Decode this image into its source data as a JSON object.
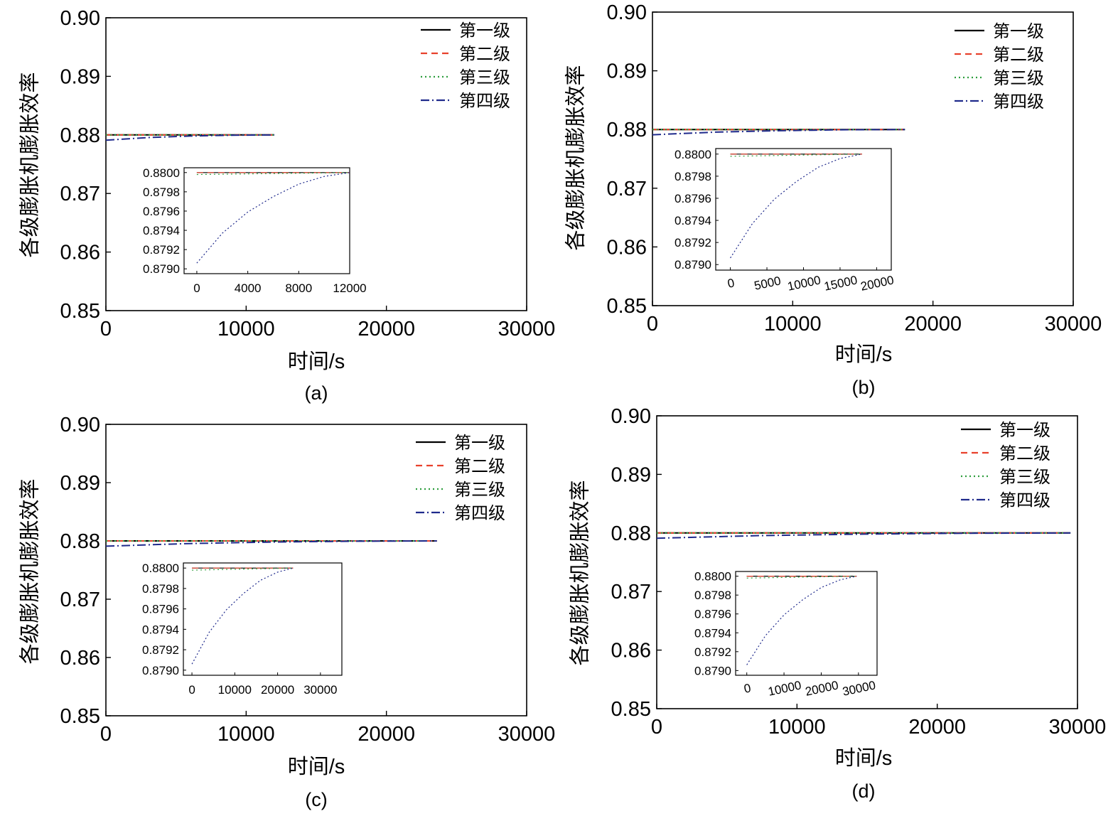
{
  "series_styles": [
    {
      "color": "#000000",
      "dash": ""
    },
    {
      "color": "#e8412c",
      "dash": "9,6"
    },
    {
      "color": "#2e9e3e",
      "dash": "2,4"
    },
    {
      "color": "#1f2a8c",
      "dash": "12,4,2,4"
    }
  ],
  "chart_data": [
    {
      "type": "line",
      "caption": "(a)",
      "xlabel": "时间/s",
      "ylabel": "各级膨胀机膨胀效率",
      "xlim": [
        0,
        30000
      ],
      "ylim": [
        0.85,
        0.9
      ],
      "xticks": [
        0,
        10000,
        20000,
        30000
      ],
      "yticks": [
        "0.85",
        "0.86",
        "0.87",
        "0.88",
        "0.89",
        "0.90"
      ],
      "legend": [
        "第一级",
        "第二级",
        "第三级",
        "第四级"
      ],
      "legend_position": "top-right",
      "series": [
        {
          "name": "第一级",
          "x": [
            0,
            12000
          ],
          "y": [
            0.88,
            0.88
          ]
        },
        {
          "name": "第二级",
          "x": [
            0,
            12000
          ],
          "y": [
            0.88,
            0.88
          ]
        },
        {
          "name": "第三级",
          "x": [
            0,
            12000
          ],
          "y": [
            0.88,
            0.88
          ]
        },
        {
          "name": "第四级",
          "x": [
            0,
            3000,
            6000,
            9000,
            12000
          ],
          "y": [
            0.8791,
            0.87955,
            0.8798,
            0.87995,
            0.88
          ]
        }
      ],
      "inset": {
        "xlim": [
          -1000,
          12000
        ],
        "ylim": [
          0.87895,
          0.88005
        ],
        "xticks": [
          0,
          4000,
          8000,
          12000
        ],
        "yticks": [
          "0.8790",
          "0.8792",
          "0.8794",
          "0.8796",
          "0.8798",
          "0.8800"
        ],
        "tick_rotate": false,
        "series": [
          {
            "name": "第一级",
            "x": [
              0,
              12000
            ],
            "y": [
              0.88,
              0.88
            ]
          },
          {
            "name": "第二级",
            "x": [
              0,
              12000
            ],
            "y": [
              0.88,
              0.88
            ]
          },
          {
            "name": "第三级",
            "x": [
              0,
              12000
            ],
            "y": [
              0.87998,
              0.88
            ]
          },
          {
            "name": "第四级",
            "x": [
              0,
              2000,
              4000,
              6000,
              8000,
              10000,
              12000
            ],
            "y": [
              0.87906,
              0.87937,
              0.87959,
              0.87975,
              0.87988,
              0.87996,
              0.88
            ]
          }
        ]
      }
    },
    {
      "type": "line",
      "caption": "(b)",
      "xlabel": "时间/s",
      "ylabel": "各级膨胀机膨胀效率",
      "xlim": [
        0,
        30000
      ],
      "ylim": [
        0.85,
        0.9
      ],
      "xticks": [
        0,
        10000,
        20000,
        30000
      ],
      "yticks": [
        "0.85",
        "0.86",
        "0.87",
        "0.88",
        "0.89",
        "0.90"
      ],
      "legend": [
        "第一级",
        "第二级",
        "第三级",
        "第四级"
      ],
      "legend_position": "top-right",
      "series": [
        {
          "name": "第一级",
          "x": [
            0,
            18000
          ],
          "y": [
            0.88,
            0.88
          ]
        },
        {
          "name": "第二级",
          "x": [
            0,
            18000
          ],
          "y": [
            0.88,
            0.88
          ]
        },
        {
          "name": "第三级",
          "x": [
            0,
            18000
          ],
          "y": [
            0.88,
            0.88
          ]
        },
        {
          "name": "第四级",
          "x": [
            0,
            4500,
            9000,
            13500,
            18000
          ],
          "y": [
            0.8791,
            0.87955,
            0.8798,
            0.87995,
            0.88
          ]
        }
      ],
      "inset": {
        "xlim": [
          -2000,
          22000
        ],
        "ylim": [
          0.87895,
          0.88005
        ],
        "xticks": [
          0,
          5000,
          10000,
          15000,
          20000
        ],
        "yticks": [
          "0.8790",
          "0.8792",
          "0.8794",
          "0.8796",
          "0.8798",
          "0.8800"
        ],
        "tick_rotate": true,
        "series": [
          {
            "name": "第一级",
            "x": [
              0,
              18000
            ],
            "y": [
              0.88,
              0.88
            ]
          },
          {
            "name": "第二级",
            "x": [
              0,
              18000
            ],
            "y": [
              0.88,
              0.88
            ]
          },
          {
            "name": "第三级",
            "x": [
              0,
              18000
            ],
            "y": [
              0.87998,
              0.88
            ]
          },
          {
            "name": "第四级",
            "x": [
              0,
              3000,
              6000,
              9000,
              12000,
              15000,
              18000
            ],
            "y": [
              0.87906,
              0.87937,
              0.87959,
              0.87975,
              0.87988,
              0.87996,
              0.88
            ]
          }
        ]
      }
    },
    {
      "type": "line",
      "caption": "(c)",
      "xlabel": "时间/s",
      "ylabel": "各级膨胀机膨胀效率",
      "xlim": [
        0,
        30000
      ],
      "ylim": [
        0.85,
        0.9
      ],
      "xticks": [
        0,
        10000,
        20000,
        30000
      ],
      "yticks": [
        "0.85",
        "0.86",
        "0.87",
        "0.88",
        "0.89",
        "0.90"
      ],
      "legend": [
        "第一级",
        "第二级",
        "第三级",
        "第四级"
      ],
      "legend_position": "top-right",
      "series": [
        {
          "name": "第一级",
          "x": [
            0,
            23600
          ],
          "y": [
            0.88,
            0.88
          ]
        },
        {
          "name": "第二级",
          "x": [
            0,
            23600
          ],
          "y": [
            0.88,
            0.88
          ]
        },
        {
          "name": "第三级",
          "x": [
            0,
            23600
          ],
          "y": [
            0.88,
            0.88
          ]
        },
        {
          "name": "第四级",
          "x": [
            0,
            5900,
            11800,
            17700,
            23600
          ],
          "y": [
            0.8791,
            0.87955,
            0.8798,
            0.87995,
            0.88
          ]
        }
      ],
      "inset": {
        "xlim": [
          -2000,
          35000
        ],
        "ylim": [
          0.87895,
          0.88005
        ],
        "xticks": [
          0,
          10000,
          20000,
          30000
        ],
        "yticks": [
          "0.8790",
          "0.8792",
          "0.8794",
          "0.8796",
          "0.8798",
          "0.8800"
        ],
        "tick_rotate": false,
        "series": [
          {
            "name": "第一级",
            "x": [
              0,
              23600
            ],
            "y": [
              0.88,
              0.88
            ]
          },
          {
            "name": "第二级",
            "x": [
              0,
              23600
            ],
            "y": [
              0.88,
              0.88
            ]
          },
          {
            "name": "第三级",
            "x": [
              0,
              23600
            ],
            "y": [
              0.87998,
              0.88
            ]
          },
          {
            "name": "第四级",
            "x": [
              0,
              4000,
              8000,
              12000,
              16000,
              20000,
              23600
            ],
            "y": [
              0.87906,
              0.87937,
              0.87959,
              0.87975,
              0.87988,
              0.87996,
              0.88
            ]
          }
        ]
      }
    },
    {
      "type": "line",
      "caption": "(d)",
      "xlabel": "时间/s",
      "ylabel": "各级膨胀机膨胀效率",
      "xlim": [
        0,
        30000
      ],
      "ylim": [
        0.85,
        0.9
      ],
      "xticks": [
        0,
        10000,
        20000,
        30000
      ],
      "yticks": [
        "0.85",
        "0.86",
        "0.87",
        "0.88",
        "0.89",
        "0.90"
      ],
      "legend": [
        "第一级",
        "第二级",
        "第三级",
        "第四级"
      ],
      "legend_position": "top-right",
      "series": [
        {
          "name": "第一级",
          "x": [
            0,
            29500
          ],
          "y": [
            0.88,
            0.88
          ]
        },
        {
          "name": "第二级",
          "x": [
            0,
            29500
          ],
          "y": [
            0.88,
            0.88
          ]
        },
        {
          "name": "第三级",
          "x": [
            0,
            29500
          ],
          "y": [
            0.88,
            0.88
          ]
        },
        {
          "name": "第四级",
          "x": [
            0,
            7400,
            14800,
            22100,
            29500
          ],
          "y": [
            0.8791,
            0.87955,
            0.8798,
            0.87995,
            0.88
          ]
        }
      ],
      "inset": {
        "xlim": [
          -3000,
          35000
        ],
        "ylim": [
          0.87895,
          0.88005
        ],
        "xticks": [
          0,
          10000,
          20000,
          30000
        ],
        "yticks": [
          "0.8790",
          "0.8792",
          "0.8794",
          "0.8796",
          "0.8798",
          "0.8800"
        ],
        "tick_rotate": true,
        "series": [
          {
            "name": "第一级",
            "x": [
              0,
              29500
            ],
            "y": [
              0.88,
              0.88
            ]
          },
          {
            "name": "第二级",
            "x": [
              0,
              29500
            ],
            "y": [
              0.88,
              0.88
            ]
          },
          {
            "name": "第三级",
            "x": [
              0,
              29500
            ],
            "y": [
              0.87998,
              0.88
            ]
          },
          {
            "name": "第四级",
            "x": [
              0,
              5000,
              10000,
              15000,
              20000,
              25000,
              29500
            ],
            "y": [
              0.87906,
              0.87937,
              0.87959,
              0.87975,
              0.87988,
              0.87996,
              0.88
            ]
          }
        ]
      }
    }
  ]
}
